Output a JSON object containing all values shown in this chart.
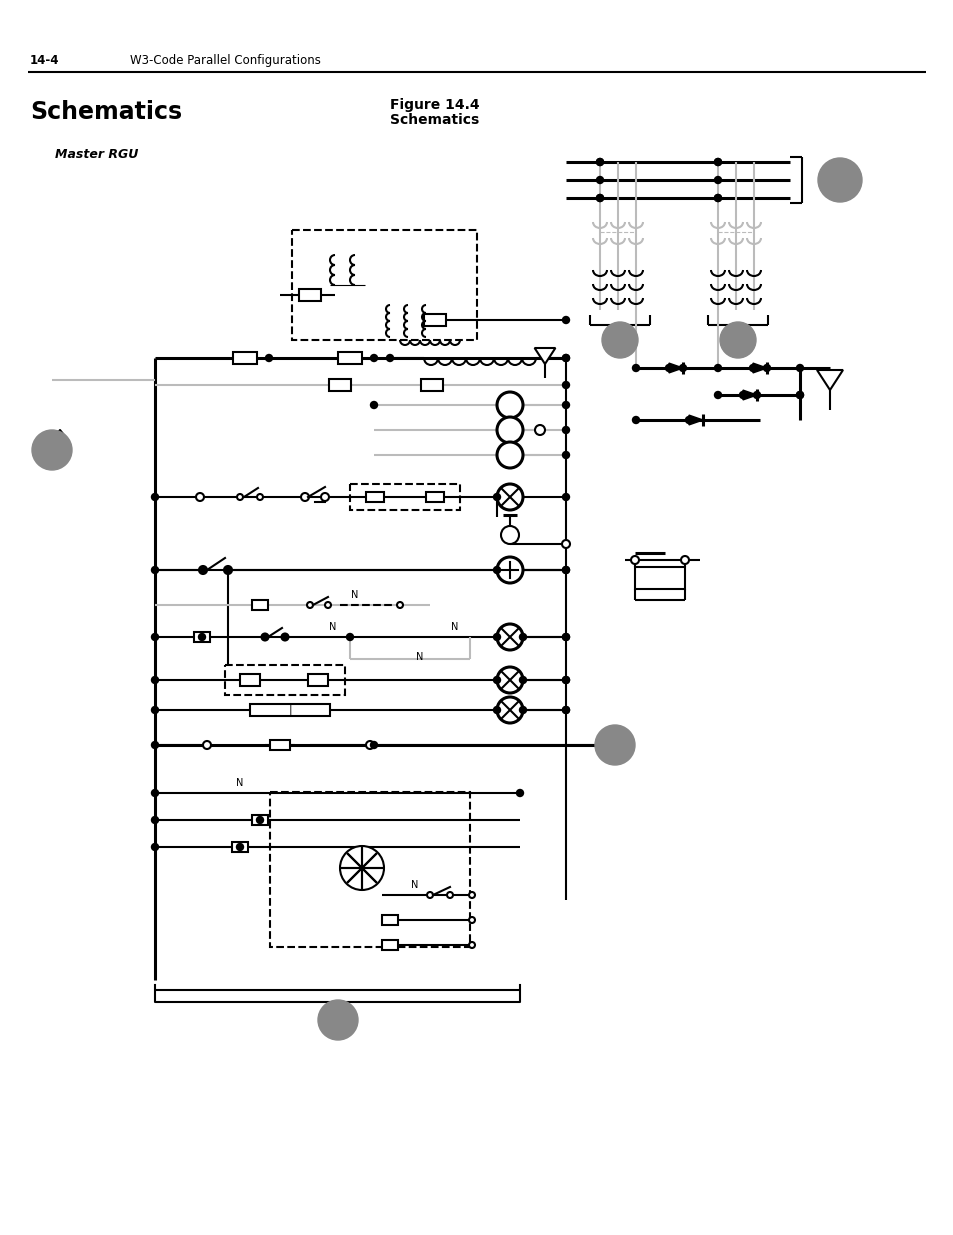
{
  "page_header_left": "14-4",
  "page_header_right": "W3-Code Parallel Configurations",
  "title_left": "Schematics",
  "title_right_line1": "Figure 14.4",
  "title_right_line2": "Schematics",
  "subtitle": "Master RGU",
  "bg_color": "#ffffff",
  "line_color": "#000000",
  "gray_color": "#808080",
  "light_gray": "#bbbbbb",
  "dashed_color": "#000000",
  "circle_fill": "#888888",
  "fig_width": 9.54,
  "fig_height": 12.35
}
